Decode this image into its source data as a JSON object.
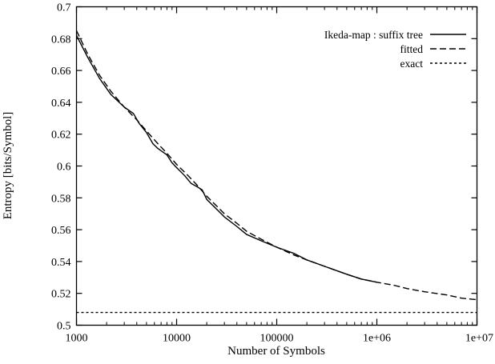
{
  "chart_data": {
    "type": "line",
    "title": "",
    "xlabel": "Number of Symbols",
    "ylabel": "Entropy [bits/Symbol]",
    "xscale": "log",
    "xlim": [
      1000,
      10000000
    ],
    "ylim": [
      0.5,
      0.7
    ],
    "x_ticks": [
      1000,
      10000,
      100000,
      1000000,
      10000000
    ],
    "x_tick_labels": [
      "1000",
      "10000",
      "100000",
      "1e+06",
      "1e+07"
    ],
    "y_ticks": [
      0.5,
      0.52,
      0.54,
      0.56,
      0.58,
      0.6,
      0.62,
      0.64,
      0.66,
      0.68,
      0.7
    ],
    "y_tick_labels": [
      "0.5",
      "0.52",
      "0.54",
      "0.56",
      "0.58",
      "0.6",
      "0.62",
      "0.64",
      "0.66",
      "0.68",
      "0.7"
    ],
    "grid": false,
    "legend_position": "top-right",
    "series": [
      {
        "name": "Ikeda-map : suffix tree",
        "style": "solid",
        "color": "#000000",
        "x": [
          1000,
          1300,
          1700,
          2200,
          3000,
          3700,
          4200,
          5000,
          5800,
          6500,
          7200,
          8000,
          9000,
          10000,
          12000,
          14000,
          16000,
          18000,
          20000,
          25000,
          30000,
          40000,
          50000,
          70000,
          100000,
          150000,
          200000,
          300000,
          500000,
          700000,
          1000000
        ],
        "y": [
          0.682,
          0.668,
          0.655,
          0.645,
          0.637,
          0.633,
          0.627,
          0.621,
          0.614,
          0.611,
          0.609,
          0.607,
          0.602,
          0.599,
          0.594,
          0.589,
          0.587,
          0.585,
          0.579,
          0.573,
          0.568,
          0.562,
          0.557,
          0.553,
          0.549,
          0.545,
          0.541,
          0.537,
          0.532,
          0.529,
          0.527
        ]
      },
      {
        "name": "fitted",
        "style": "dashed",
        "color": "#000000",
        "x": [
          1000,
          1300,
          1700,
          2200,
          3000,
          4000,
          5000,
          6500,
          8000,
          10000,
          13000,
          16000,
          20000,
          25000,
          30000,
          40000,
          50000,
          70000,
          100000,
          150000,
          200000,
          300000,
          500000,
          700000,
          1000000,
          1500000,
          2000000,
          3000000,
          5000000,
          7000000,
          10000000
        ],
        "y": [
          0.685,
          0.67,
          0.657,
          0.647,
          0.637,
          0.629,
          0.622,
          0.614,
          0.608,
          0.601,
          0.594,
          0.588,
          0.581,
          0.575,
          0.57,
          0.564,
          0.559,
          0.554,
          0.549,
          0.544,
          0.541,
          0.537,
          0.532,
          0.529,
          0.527,
          0.525,
          0.523,
          0.521,
          0.519,
          0.517,
          0.516
        ]
      },
      {
        "name": "exact",
        "style": "dotted",
        "color": "#000000",
        "x": [
          1000,
          10000000
        ],
        "y": [
          0.508,
          0.508
        ]
      }
    ]
  }
}
